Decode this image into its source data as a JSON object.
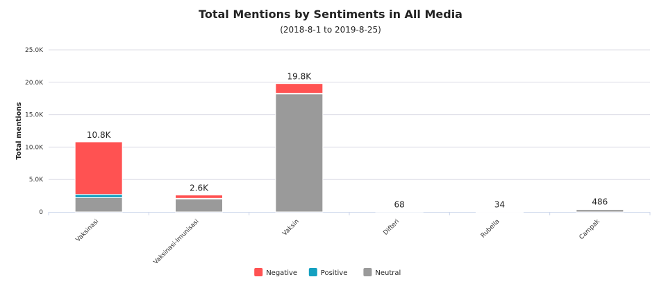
{
  "chart_data": {
    "type": "bar",
    "stacked": true,
    "title": "Total Mentions by Sentiments in All Media",
    "subtitle": "(2018-8-1 to 2019-8-25)",
    "xlabel": "",
    "ylabel": "Total mentions",
    "ylim": [
      0,
      25000
    ],
    "yticks": [
      0,
      5000,
      10000,
      15000,
      20000,
      25000
    ],
    "ytick_labels": [
      "0",
      "5.0K",
      "10.0K",
      "15.0K",
      "20.0K",
      "25.0K"
    ],
    "grid": true,
    "legend_position": "bottom-center",
    "categories": [
      "Vaksinasi",
      "Vaksinasi-Imunisasi",
      "Vaksin",
      "Difteri",
      "Rubella",
      "Campak"
    ],
    "series": [
      {
        "name": "Neutral",
        "color": "#9a9a9a",
        "values": [
          2200,
          2000,
          18200,
          40,
          20,
          380
        ]
      },
      {
        "name": "Positive",
        "color": "#14a0c0",
        "values": [
          500,
          100,
          100,
          8,
          4,
          30
        ]
      },
      {
        "name": "Negative",
        "color": "#ff5252",
        "values": [
          8100,
          500,
          1500,
          20,
          10,
          76
        ]
      }
    ],
    "legend_order": [
      "Negative",
      "Positive",
      "Neutral"
    ],
    "total_labels": [
      "10.8K",
      "2.6K",
      "19.8K",
      "68",
      "34",
      "486"
    ]
  }
}
